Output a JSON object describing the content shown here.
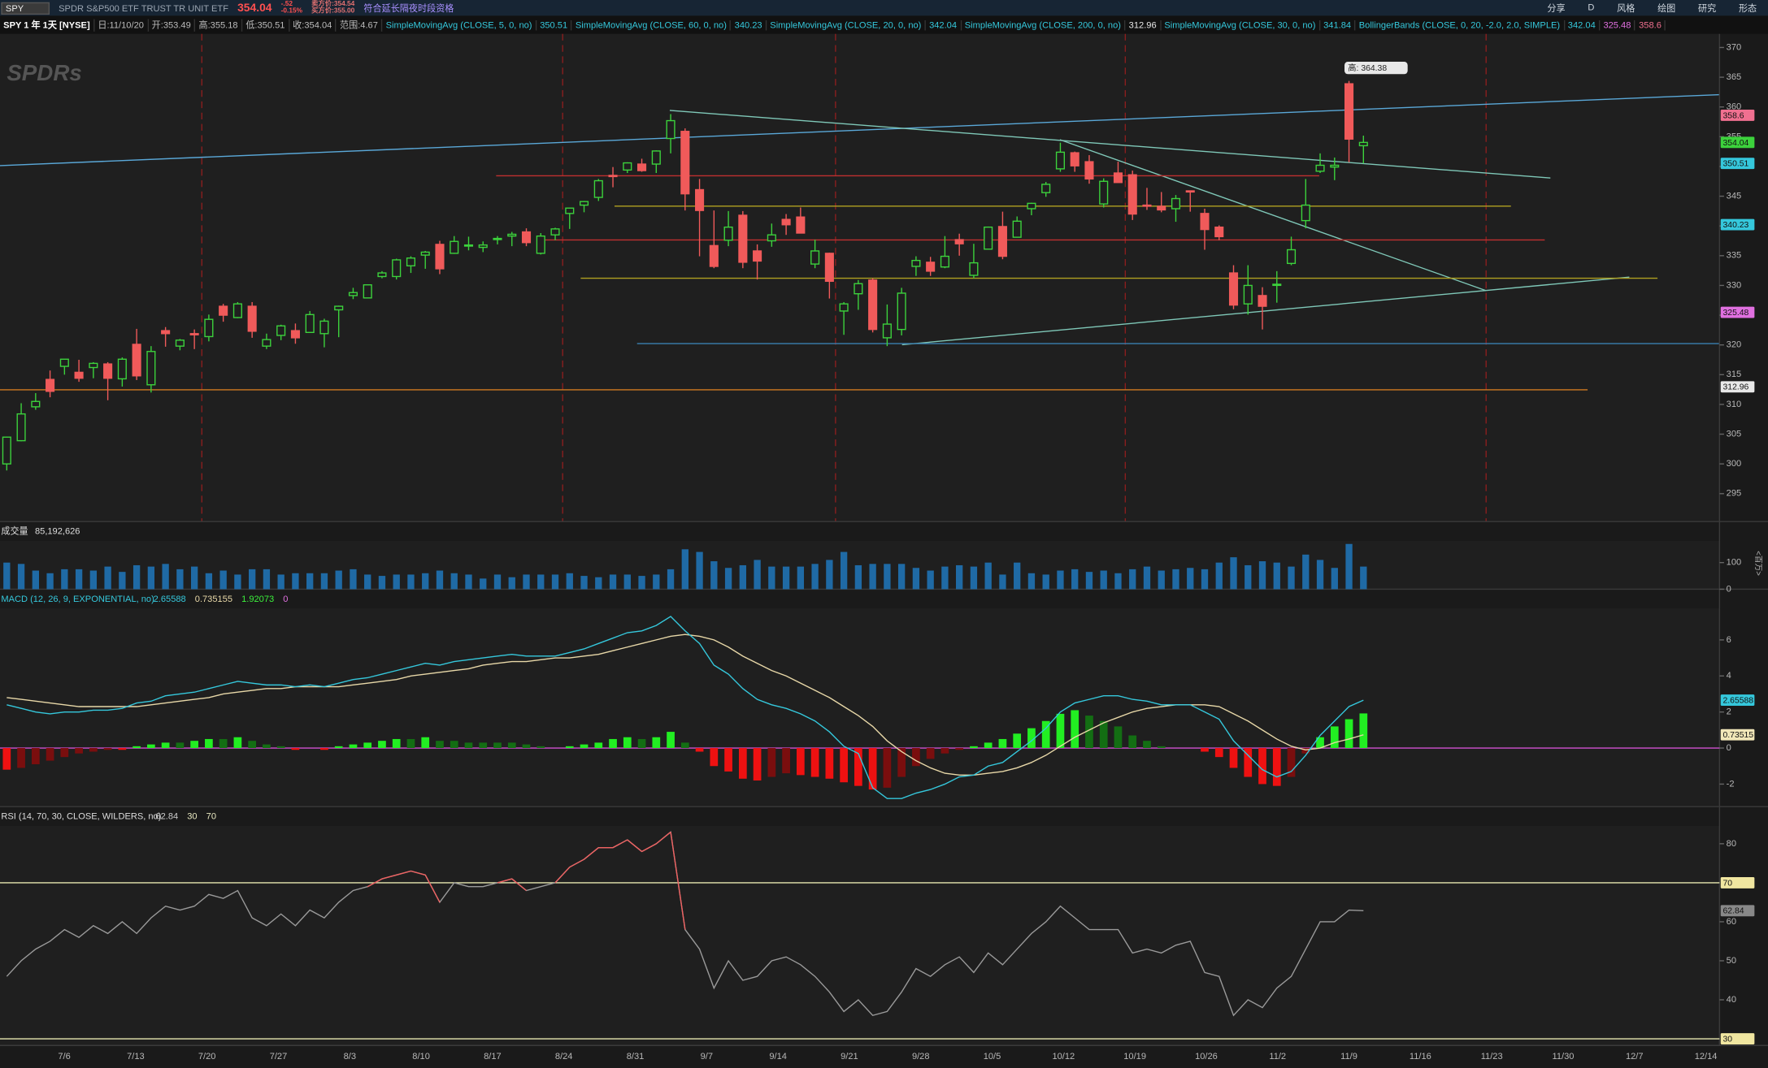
{
  "toolbar": {
    "symbol": "SPY",
    "description": "SPDR S&P500 ETF TRUST TR UNIT ETF",
    "last": "354.04",
    "change": "-.52",
    "change_pct": "-0.15%",
    "bid": "卖方价:354.54",
    "ask": "买方价:355.00",
    "session": "符合延长隔夜时段资格",
    "buttons": [
      "分享",
      "D",
      "风格",
      "绘图",
      "研究",
      "形态"
    ]
  },
  "info": {
    "chart_label": "SPY 1 年 1天 [NYSE]",
    "fields": [
      "日:11/10/20",
      "开:353.49",
      "高:355.18",
      "低:350.51",
      "收:354.04",
      "范围:4.67"
    ],
    "studies": [
      {
        "label": "SimpleMovingAvg (CLOSE, 5, 0, no)",
        "values": [
          {
            "text": "350.51",
            "color": "#35c8dc"
          }
        ]
      },
      {
        "label": "SimpleMovingAvg (CLOSE, 60, 0, no)",
        "values": [
          {
            "text": "340.23",
            "color": "#35c8dc"
          }
        ]
      },
      {
        "label": "SimpleMovingAvg (CLOSE, 20, 0, no)",
        "values": [
          {
            "text": "342.04",
            "color": "#35c8dc"
          }
        ]
      },
      {
        "label": "SimpleMovingAvg (CLOSE, 200, 0, no)",
        "values": [
          {
            "text": "312.96",
            "color": "#e8e8e8"
          }
        ]
      },
      {
        "label": "SimpleMovingAvg (CLOSE, 30, 0, no)",
        "values": [
          {
            "text": "341.84",
            "color": "#35c8dc"
          }
        ]
      },
      {
        "label": "BollingerBands (CLOSE, 0, 20, -2.0, 2.0, SIMPLE)",
        "values": [
          {
            "text": "342.04",
            "color": "#35c8dc"
          },
          {
            "text": "325.48",
            "color": "#e070e0"
          },
          {
            "text": "358.6",
            "color": "#f07090"
          }
        ]
      }
    ]
  },
  "watermark": "SPDRs",
  "price": {
    "type": "candlestick",
    "ylim": [
      290.3,
      372.3
    ],
    "yticks": [
      295,
      300,
      305,
      310,
      315,
      320,
      325,
      330,
      335,
      340,
      345,
      350,
      355,
      360,
      365,
      370
    ],
    "up_color": "#3cd23c",
    "down_color": "#f05a5a",
    "high_marker": "高: 364.38",
    "candles": [
      [
        300.0,
        304.6,
        298.9,
        304.5
      ],
      [
        303.9,
        310.2,
        303.8,
        308.4
      ],
      [
        309.6,
        311.9,
        309.1,
        310.5
      ],
      [
        314.2,
        315.7,
        311.2,
        312.2
      ],
      [
        316.4,
        317.6,
        315.0,
        317.6
      ],
      [
        315.4,
        317.5,
        313.8,
        314.4
      ],
      [
        316.2,
        317.1,
        314.4,
        316.9
      ],
      [
        316.8,
        317.1,
        310.7,
        314.4
      ],
      [
        314.3,
        317.9,
        313.0,
        317.6
      ],
      [
        320.1,
        322.7,
        314.1,
        314.8
      ],
      [
        313.3,
        319.8,
        312.0,
        318.9
      ],
      [
        322.4,
        323.0,
        319.7,
        321.9
      ],
      [
        319.8,
        321.0,
        319.1,
        320.8
      ],
      [
        321.9,
        322.6,
        319.3,
        321.7
      ],
      [
        321.4,
        325.1,
        320.6,
        324.3
      ],
      [
        326.5,
        326.9,
        323.9,
        325.0
      ],
      [
        324.6,
        327.2,
        324.5,
        326.9
      ],
      [
        326.5,
        327.2,
        321.2,
        322.3
      ],
      [
        319.8,
        321.9,
        319.3,
        320.9
      ],
      [
        321.6,
        323.4,
        320.8,
        323.2
      ],
      [
        322.4,
        323.6,
        320.2,
        321.2
      ],
      [
        322.1,
        325.7,
        322.1,
        325.1
      ],
      [
        321.9,
        324.4,
        319.6,
        324.0
      ],
      [
        325.9,
        326.6,
        321.3,
        326.5
      ],
      [
        328.3,
        329.6,
        327.7,
        328.8
      ],
      [
        327.9,
        330.1,
        327.9,
        330.1
      ],
      [
        331.5,
        332.4,
        331.2,
        332.1
      ],
      [
        331.5,
        334.5,
        331.0,
        334.3
      ],
      [
        333.3,
        334.9,
        332.1,
        334.6
      ],
      [
        335.1,
        335.8,
        332.8,
        335.6
      ],
      [
        336.9,
        337.5,
        331.9,
        332.8
      ],
      [
        335.4,
        338.3,
        335.3,
        337.4
      ],
      [
        336.7,
        338.2,
        335.9,
        336.8
      ],
      [
        336.4,
        337.4,
        335.6,
        336.8
      ],
      [
        337.9,
        338.3,
        336.9,
        337.9
      ],
      [
        338.3,
        339.0,
        336.6,
        338.6
      ],
      [
        339.0,
        339.6,
        336.6,
        337.2
      ],
      [
        335.4,
        338.8,
        335.2,
        338.3
      ],
      [
        338.5,
        339.7,
        337.6,
        339.5
      ],
      [
        342.1,
        343.0,
        339.5,
        343.0
      ],
      [
        343.5,
        344.2,
        342.3,
        344.1
      ],
      [
        344.8,
        347.9,
        344.2,
        347.6
      ],
      [
        348.5,
        349.9,
        346.5,
        348.3
      ],
      [
        349.4,
        350.7,
        348.9,
        350.6
      ],
      [
        350.4,
        351.3,
        349.1,
        349.3
      ],
      [
        350.4,
        352.7,
        348.9,
        352.6
      ],
      [
        354.7,
        358.8,
        352.2,
        357.7
      ],
      [
        355.9,
        356.4,
        342.6,
        345.4
      ],
      [
        346.1,
        347.9,
        334.9,
        342.6
      ],
      [
        336.7,
        342.6,
        332.9,
        333.2
      ],
      [
        337.6,
        342.5,
        336.6,
        339.8
      ],
      [
        341.8,
        342.5,
        332.9,
        333.9
      ],
      [
        335.8,
        336.9,
        331.0,
        334.1
      ],
      [
        337.5,
        340.4,
        336.5,
        338.5
      ],
      [
        341.1,
        342.0,
        338.5,
        340.2
      ],
      [
        341.5,
        343.1,
        338.8,
        338.8
      ],
      [
        333.6,
        337.7,
        332.9,
        335.8
      ],
      [
        335.4,
        335.5,
        327.8,
        330.7
      ],
      [
        325.7,
        327.2,
        321.7,
        326.9
      ],
      [
        328.6,
        330.9,
        325.9,
        330.3
      ],
      [
        330.9,
        331.2,
        322.1,
        322.6
      ],
      [
        321.2,
        326.8,
        319.8,
        323.5
      ],
      [
        322.6,
        329.6,
        321.6,
        328.7
      ],
      [
        333.2,
        334.9,
        331.6,
        334.2
      ],
      [
        333.9,
        334.8,
        331.6,
        332.4
      ],
      [
        333.1,
        338.3,
        332.9,
        334.9
      ],
      [
        337.7,
        338.7,
        335.0,
        337.0
      ],
      [
        331.7,
        337.0,
        331.2,
        333.8
      ],
      [
        336.1,
        339.9,
        336.1,
        339.8
      ],
      [
        339.9,
        342.4,
        334.4,
        334.9
      ],
      [
        338.1,
        341.6,
        338.1,
        340.8
      ],
      [
        342.9,
        343.9,
        341.8,
        343.8
      ],
      [
        345.6,
        347.4,
        344.9,
        347.0
      ],
      [
        349.6,
        354.0,
        349.1,
        352.4
      ],
      [
        352.3,
        352.5,
        349.1,
        350.1
      ],
      [
        350.8,
        351.9,
        347.1,
        347.9
      ],
      [
        343.7,
        348.0,
        343.1,
        347.5
      ],
      [
        348.9,
        350.8,
        347.3,
        347.3
      ],
      [
        348.6,
        349.3,
        341.0,
        342.0
      ],
      [
        343.5,
        346.4,
        342.7,
        343.4
      ],
      [
        343.3,
        345.7,
        342.3,
        342.7
      ],
      [
        342.9,
        345.2,
        340.7,
        344.6
      ],
      [
        345.9,
        345.9,
        342.4,
        345.8
      ],
      [
        342.1,
        342.9,
        336.0,
        339.4
      ],
      [
        339.8,
        340.1,
        337.6,
        338.2
      ],
      [
        332.1,
        333.4,
        326.0,
        326.7
      ],
      [
        326.9,
        333.4,
        325.1,
        330.0
      ],
      [
        328.3,
        329.7,
        322.6,
        326.5
      ],
      [
        330.2,
        332.4,
        327.1,
        330.2
      ],
      [
        333.7,
        338.2,
        333.4,
        336.0
      ],
      [
        340.9,
        347.9,
        339.6,
        343.5
      ],
      [
        349.2,
        352.2,
        348.9,
        350.2
      ],
      [
        349.9,
        351.5,
        347.7,
        350.2
      ],
      [
        363.9,
        364.38,
        350.7,
        354.6
      ],
      [
        353.49,
        355.18,
        350.51,
        354.04
      ]
    ],
    "tags": [
      {
        "value": 358.6,
        "color": "#f07090"
      },
      {
        "value": 354.04,
        "color": "#3cd23c"
      },
      {
        "value": 350.51,
        "color": "#35c8dc"
      },
      {
        "value": 340.23,
        "color": "#35c8dc"
      },
      {
        "value": 325.48,
        "color": "#e070e0"
      },
      {
        "value": 312.96,
        "color": "#e8e8e8"
      }
    ]
  },
  "volume": {
    "type": "bar",
    "label": "成交量",
    "total": "85,192,626",
    "unit": "<百万>",
    "ylim": [
      0,
      182
    ],
    "yticks": [
      0,
      100
    ],
    "color": "#1f6aa5",
    "values": [
      100,
      95,
      70,
      60,
      75,
      75,
      70,
      85,
      65,
      90,
      85,
      95,
      75,
      85,
      60,
      70,
      55,
      75,
      75,
      55,
      60,
      60,
      60,
      70,
      75,
      55,
      50,
      55,
      55,
      60,
      70,
      60,
      55,
      40,
      55,
      45,
      55,
      55,
      55,
      60,
      50,
      45,
      55,
      55,
      50,
      55,
      75,
      150,
      140,
      105,
      80,
      90,
      110,
      85,
      85,
      85,
      95,
      110,
      140,
      90,
      95,
      95,
      95,
      80,
      70,
      85,
      90,
      85,
      100,
      55,
      100,
      60,
      55,
      70,
      75,
      65,
      70,
      60,
      75,
      85,
      70,
      75,
      80,
      75,
      100,
      120,
      90,
      105,
      100,
      85,
      130,
      110,
      80,
      170,
      85
    ]
  },
  "macd": {
    "type": "macd",
    "label": "MACD (12, 26, 9, EXPONENTIAL, no)",
    "readouts": [
      {
        "text": "2.65588",
        "color": "#35c8dc"
      },
      {
        "text": "0.735155",
        "color": "#e8d8a8"
      },
      {
        "text": "1.92073",
        "color": "#3cf03c"
      },
      {
        "text": "0",
        "color": "#e070e0"
      }
    ],
    "ylim": [
      -3.25,
      7.75
    ],
    "yticks": [
      -2,
      0,
      2,
      4,
      6
    ],
    "value_color": "#35c8dc",
    "avg_color": "#e8d8a8",
    "zero_color": "#d050d0",
    "up_color": "#22ee22",
    "down_color": "#ee1111",
    "tags": [
      {
        "value": 2.65588,
        "color": "#35c8dc"
      },
      {
        "value": 0.73515,
        "color": "#f0e6b8"
      }
    ],
    "value": [
      2.4,
      2.2,
      2.0,
      1.9,
      2.0,
      2.0,
      2.1,
      2.1,
      2.2,
      2.5,
      2.6,
      2.9,
      3.0,
      3.1,
      3.3,
      3.5,
      3.7,
      3.6,
      3.5,
      3.5,
      3.4,
      3.5,
      3.4,
      3.6,
      3.8,
      3.9,
      4.1,
      4.3,
      4.5,
      4.7,
      4.6,
      4.8,
      4.9,
      5.0,
      5.1,
      5.2,
      5.1,
      5.1,
      5.1,
      5.3,
      5.5,
      5.8,
      6.1,
      6.4,
      6.5,
      6.8,
      7.3,
      6.5,
      5.8,
      4.6,
      4.1,
      3.3,
      2.7,
      2.4,
      2.2,
      1.9,
      1.5,
      0.9,
      0.1,
      -0.3,
      -2.2,
      -2.8,
      -2.8,
      -2.5,
      -2.3,
      -2.0,
      -1.6,
      -1.5,
      -1.0,
      -0.8,
      -0.2,
      0.4,
      1.1,
      2.0,
      2.5,
      2.7,
      2.9,
      2.9,
      2.7,
      2.6,
      2.4,
      2.4,
      2.4,
      2.0,
      1.6,
      0.4,
      -0.4,
      -1.2,
      -1.6,
      -1.3,
      -0.4,
      0.7,
      1.5,
      2.3,
      2.65588
    ],
    "avg": [
      2.8,
      2.7,
      2.6,
      2.5,
      2.4,
      2.3,
      2.3,
      2.3,
      2.3,
      2.3,
      2.4,
      2.5,
      2.6,
      2.7,
      2.8,
      3.0,
      3.1,
      3.2,
      3.3,
      3.3,
      3.4,
      3.4,
      3.4,
      3.4,
      3.5,
      3.6,
      3.7,
      3.8,
      4.0,
      4.1,
      4.2,
      4.3,
      4.4,
      4.6,
      4.7,
      4.8,
      4.8,
      4.9,
      5.0,
      5.0,
      5.1,
      5.2,
      5.4,
      5.6,
      5.8,
      6.0,
      6.2,
      6.3,
      6.2,
      6.0,
      5.6,
      5.1,
      4.7,
      4.3,
      4.0,
      3.6,
      3.2,
      2.8,
      2.3,
      1.8,
      1.2,
      0.4,
      -0.2,
      -0.7,
      -1.1,
      -1.4,
      -1.5,
      -1.5,
      -1.4,
      -1.3,
      -1.1,
      -0.8,
      -0.4,
      0.1,
      0.6,
      1.0,
      1.4,
      1.7,
      2.0,
      2.2,
      2.3,
      2.4,
      2.4,
      2.4,
      2.3,
      1.9,
      1.5,
      1.0,
      0.5,
      0.1,
      -0.1,
      0.0,
      0.3,
      0.5,
      0.735155
    ],
    "diff": [
      -1.2,
      -1.1,
      -0.9,
      -0.7,
      -0.5,
      -0.3,
      -0.2,
      -0.1,
      -0.1,
      0.1,
      0.2,
      0.3,
      0.3,
      0.4,
      0.5,
      0.5,
      0.6,
      0.4,
      0.2,
      0.1,
      -0.1,
      0.0,
      -0.1,
      0.1,
      0.2,
      0.3,
      0.4,
      0.5,
      0.5,
      0.6,
      0.4,
      0.4,
      0.3,
      0.3,
      0.3,
      0.3,
      0.2,
      0.1,
      0.0,
      0.1,
      0.2,
      0.3,
      0.5,
      0.6,
      0.5,
      0.6,
      0.9,
      0.3,
      -0.2,
      -1.0,
      -1.3,
      -1.7,
      -1.8,
      -1.6,
      -1.4,
      -1.5,
      -1.6,
      -1.7,
      -1.9,
      -2.1,
      -2.3,
      -2.2,
      -1.6,
      -1.0,
      -0.6,
      -0.3,
      -0.1,
      0.1,
      0.3,
      0.5,
      0.8,
      1.1,
      1.5,
      1.9,
      2.1,
      1.8,
      1.5,
      1.2,
      0.7,
      0.4,
      0.1,
      0.0,
      0.0,
      -0.2,
      -0.5,
      -1.1,
      -1.6,
      -2.0,
      -2.1,
      -1.6,
      -0.3,
      0.6,
      1.2,
      1.6,
      1.92073
    ]
  },
  "rsi": {
    "type": "rsi",
    "label": "RSI (14, 70, 30, CLOSE, WILDERS, no)",
    "readouts": [
      {
        "text": "62.84",
        "color": "#cccccc"
      },
      {
        "text": "30",
        "color": "#e8e8c0"
      },
      {
        "text": "70",
        "color": "#e8e8c0"
      }
    ],
    "ylim": [
      28.3,
      84.6
    ],
    "yticks": [
      40,
      50,
      60,
      80
    ],
    "levels": [
      70,
      30
    ],
    "level_color": "#e8e8b0",
    "line_color": "#9a9a9a",
    "over_color": "#f06060",
    "tags": [
      {
        "value": 70,
        "color": "#f0e6a0"
      },
      {
        "value": 62.84,
        "color": "#888888"
      },
      {
        "value": 30,
        "color": "#f0e6a0"
      }
    ],
    "values": [
      46,
      50,
      53,
      55,
      58,
      56,
      59,
      57,
      60,
      57,
      61,
      64,
      63,
      64,
      67,
      66,
      68,
      61,
      59,
      62,
      59,
      63,
      61,
      65,
      68,
      69,
      71,
      72,
      73,
      72,
      65,
      70,
      69,
      69,
      70,
      71,
      68,
      69,
      70,
      74,
      76,
      79,
      79,
      81,
      78,
      80,
      83,
      58,
      53,
      43,
      50,
      45,
      46,
      50,
      51,
      49,
      46,
      42,
      37,
      40,
      36,
      37,
      42,
      48,
      46,
      49,
      51,
      47,
      52,
      49,
      53,
      57,
      60,
      64,
      61,
      58,
      58,
      58,
      52,
      53,
      52,
      54,
      55,
      47,
      46,
      36,
      40,
      38,
      43,
      46,
      53,
      60,
      60,
      63,
      62.84
    ]
  },
  "dates": [
    "7/6",
    "7/13",
    "7/20",
    "7/27",
    "8/3",
    "8/10",
    "8/17",
    "8/24",
    "8/31",
    "9/7",
    "9/14",
    "9/21",
    "9/28",
    "10/5",
    "10/12",
    "10/19",
    "10/26",
    "11/2",
    "11/9",
    "11/16",
    "11/23",
    "11/30",
    "12/7",
    "12/14"
  ]
}
